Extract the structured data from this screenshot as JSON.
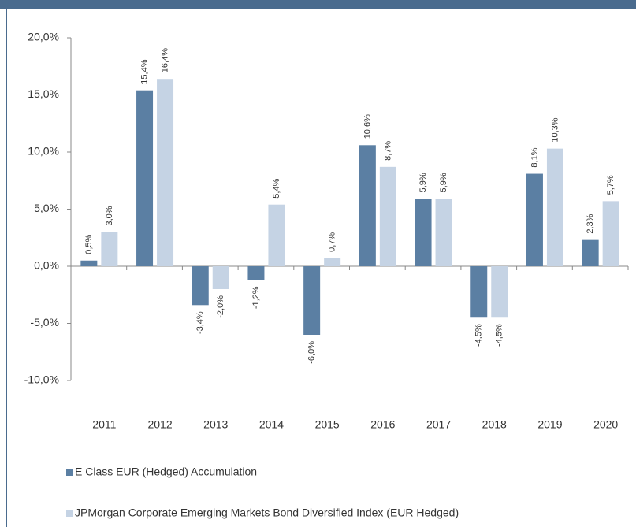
{
  "chart_data": {
    "type": "bar",
    "categories": [
      "2011",
      "2012",
      "2013",
      "2014",
      "2015",
      "2016",
      "2017",
      "2018",
      "2019",
      "2020"
    ],
    "series": [
      {
        "name": "E Class EUR (Hedged) Accumulation",
        "color": "#5b7fa3",
        "values": [
          0.5,
          15.4,
          -3.4,
          -1.2,
          -6.0,
          10.6,
          5.9,
          -4.5,
          8.1,
          2.3
        ],
        "value_labels": [
          "0,5%",
          "15,4%",
          "-3,4%",
          "-1,2%",
          "-6,0%",
          "10,6%",
          "5,9%",
          "-4,5%",
          "8,1%",
          "2,3%"
        ]
      },
      {
        "name": "JPMorgan Corporate Emerging Markets Bond Diversified Index (EUR Hedged)",
        "color": "#c5d3e4",
        "values": [
          3.0,
          16.4,
          -2.0,
          5.4,
          0.7,
          8.7,
          5.9,
          -4.5,
          10.3,
          5.7
        ],
        "value_labels": [
          "3,0%",
          "16,4%",
          "-2,0%",
          "5,4%",
          "0,7%",
          "8,7%",
          "5,9%",
          "-4,5%",
          "10,3%",
          "5,7%"
        ]
      }
    ],
    "ylim": [
      -10,
      20
    ],
    "yticks": [
      {
        "value": -10,
        "label": "-10,0%"
      },
      {
        "value": -5,
        "label": "-5,0%"
      },
      {
        "value": 0,
        "label": "0,0%"
      },
      {
        "value": 5,
        "label": "5,0%"
      },
      {
        "value": 10,
        "label": "10,0%"
      },
      {
        "value": 15,
        "label": "15,0%"
      },
      {
        "value": 20,
        "label": "20,0%"
      }
    ]
  }
}
